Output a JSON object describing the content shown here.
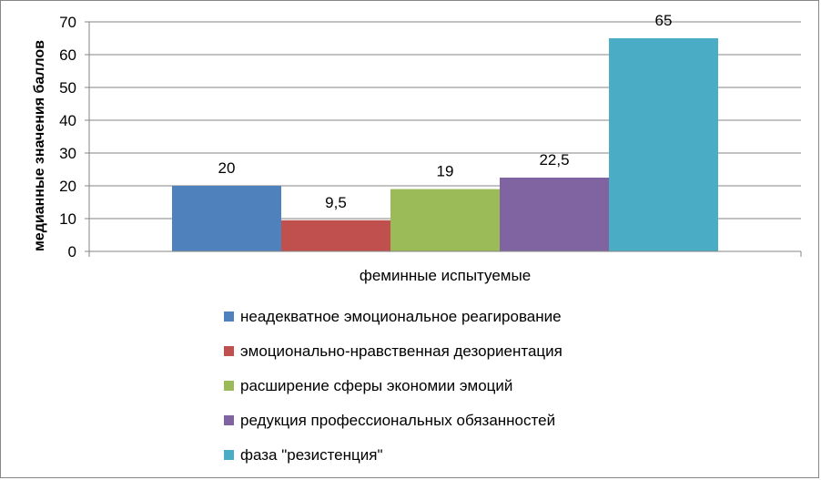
{
  "chart_data": {
    "type": "bar",
    "categories": [
      "феминные испытуемые"
    ],
    "series": [
      {
        "name": "неадекватное эмоциональное реагирование",
        "values": [
          20
        ],
        "label": "20",
        "color": "#4F81BD"
      },
      {
        "name": "эмоционально-нравственная дезориентация",
        "values": [
          9.5
        ],
        "label": "9,5",
        "color": "#C0504D"
      },
      {
        "name": "расширение сферы экономии эмоций",
        "values": [
          19
        ],
        "label": "19",
        "color": "#9BBB59"
      },
      {
        "name": "редукция профессиональных обязанностей",
        "values": [
          22.5
        ],
        "label": "22,5",
        "color": "#8064A2"
      },
      {
        "name": "фаза \"резистенция\"",
        "values": [
          65
        ],
        "label": "65",
        "color": "#4BACC6"
      }
    ],
    "ylabel": "медианные значения баллов",
    "xlabel": "",
    "ylim": [
      0,
      70
    ],
    "yticks": [
      0,
      10,
      20,
      30,
      40,
      50,
      60,
      70
    ],
    "grid": true,
    "legend_position": "bottom"
  }
}
